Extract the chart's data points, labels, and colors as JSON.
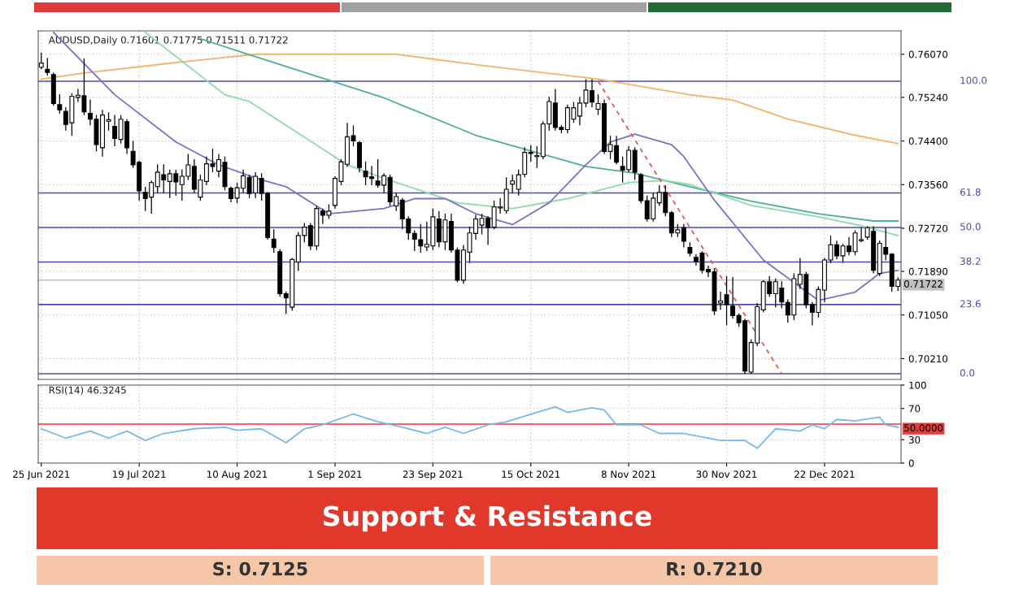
{
  "chart_data": [
    {
      "type": "candlestick",
      "title": "AUDUSD,Daily 0.71601 0.71775 0.71511 0.71722",
      "categories": [
        null,
        null,
        null,
        null,
        null,
        null,
        null,
        null,
        null,
        null,
        null,
        null,
        null,
        null,
        null,
        null,
        null,
        null,
        null,
        null,
        null,
        null,
        null,
        null,
        null,
        null,
        null,
        null,
        null,
        null,
        null,
        null,
        null,
        null,
        null,
        null,
        null,
        null,
        null,
        null,
        null,
        null,
        null,
        null,
        null,
        null,
        null,
        null,
        null,
        null,
        null,
        null,
        null,
        null,
        null,
        null,
        null,
        null,
        null,
        null,
        null,
        null,
        null,
        null,
        null,
        null,
        null,
        null,
        null,
        null,
        null,
        null,
        null,
        null,
        null,
        null,
        null,
        null,
        null,
        null,
        null,
        null,
        null,
        null,
        null,
        null,
        null,
        null,
        null,
        null,
        null,
        null,
        null,
        null,
        null,
        null,
        null,
        null,
        null,
        null,
        null,
        null,
        null,
        null,
        null,
        null,
        null,
        null,
        null,
        null,
        null,
        null,
        null,
        null,
        null,
        null,
        null,
        null,
        null,
        null,
        null,
        null,
        null,
        null,
        null,
        null,
        null,
        null,
        null,
        null,
        null,
        null,
        null,
        null,
        null,
        null,
        null,
        null,
        null,
        null,
        null
      ],
      "ohlc": [
        [
          0.7582,
          0.761,
          0.7578,
          0.759
        ],
        [
          0.7578,
          0.76,
          0.7566,
          0.7572
        ],
        [
          0.7568,
          0.7572,
          0.7508,
          0.7512
        ],
        [
          0.751,
          0.753,
          0.7493,
          0.75
        ],
        [
          0.7497,
          0.7505,
          0.746,
          0.7472
        ],
        [
          0.7475,
          0.7532,
          0.745,
          0.7526
        ],
        [
          0.7524,
          0.754,
          0.7515,
          0.7528
        ],
        [
          0.7527,
          0.7599,
          0.749,
          0.7496
        ],
        [
          0.7493,
          0.752,
          0.747,
          0.7482
        ],
        [
          0.7482,
          0.749,
          0.742,
          0.7433
        ],
        [
          0.7427,
          0.75,
          0.741,
          0.749
        ],
        [
          0.7478,
          0.7495,
          0.746,
          0.7481
        ],
        [
          0.7468,
          0.749,
          0.743,
          0.7445
        ],
        [
          0.7443,
          0.749,
          0.7435,
          0.7482
        ],
        [
          0.7477,
          0.7482,
          0.7415,
          0.7427
        ],
        [
          0.742,
          0.744,
          0.7388,
          0.7394
        ],
        [
          0.7399,
          0.7402,
          0.7325,
          0.7344
        ],
        [
          0.7341,
          0.7352,
          0.7305,
          0.7329
        ],
        [
          0.7332,
          0.7364,
          0.73,
          0.736
        ],
        [
          0.7352,
          0.7395,
          0.734,
          0.738
        ],
        [
          0.7375,
          0.7395,
          0.734,
          0.7365
        ],
        [
          0.7362,
          0.7385,
          0.733,
          0.7377
        ],
        [
          0.7377,
          0.7385,
          0.7335,
          0.7361
        ],
        [
          0.7356,
          0.7385,
          0.7325,
          0.7372
        ],
        [
          0.7372,
          0.7415,
          0.7365,
          0.7394
        ],
        [
          0.7391,
          0.7405,
          0.734,
          0.7347
        ],
        [
          0.7332,
          0.7375,
          0.7325,
          0.7365
        ],
        [
          0.7362,
          0.741,
          0.7355,
          0.7396
        ],
        [
          0.7396,
          0.7425,
          0.738,
          0.7391
        ],
        [
          0.7382,
          0.7415,
          0.737,
          0.7404
        ],
        [
          0.7399,
          0.741,
          0.7345,
          0.7352
        ],
        [
          0.7349,
          0.7352,
          0.7322,
          0.7329
        ],
        [
          0.733,
          0.736,
          0.732,
          0.735
        ],
        [
          0.7349,
          0.7385,
          0.734,
          0.7373
        ],
        [
          0.737,
          0.7375,
          0.733,
          0.7339
        ],
        [
          0.734,
          0.738,
          0.733,
          0.7372
        ],
        [
          0.7368,
          0.7378,
          0.7325,
          0.7339
        ],
        [
          0.7339,
          0.7342,
          0.725,
          0.7254
        ],
        [
          0.7251,
          0.727,
          0.7225,
          0.7235
        ],
        [
          0.7227,
          0.7232,
          0.714,
          0.7146
        ],
        [
          0.7146,
          0.715,
          0.7107,
          0.7138
        ],
        [
          0.712,
          0.7215,
          0.7113,
          0.7212
        ],
        [
          0.7207,
          0.7265,
          0.719,
          0.7258
        ],
        [
          0.7258,
          0.7282,
          0.7245,
          0.7274
        ],
        [
          0.7277,
          0.7282,
          0.723,
          0.7238
        ],
        [
          0.7238,
          0.7315,
          0.723,
          0.731
        ],
        [
          0.7305,
          0.731,
          0.728,
          0.7297
        ],
        [
          0.7297,
          0.7318,
          0.729,
          0.7305
        ],
        [
          0.7316,
          0.7372,
          0.731,
          0.7368
        ],
        [
          0.7362,
          0.7405,
          0.7355,
          0.74
        ],
        [
          0.7395,
          0.7475,
          0.739,
          0.7448
        ],
        [
          0.745,
          0.747,
          0.743,
          0.744
        ],
        [
          0.7437,
          0.744,
          0.738,
          0.7389
        ],
        [
          0.7382,
          0.74,
          0.7355,
          0.7371
        ],
        [
          0.7371,
          0.7392,
          0.7355,
          0.7368
        ],
        [
          0.7363,
          0.7405,
          0.735,
          0.7355
        ],
        [
          0.7355,
          0.7378,
          0.734,
          0.7373
        ],
        [
          0.737,
          0.7375,
          0.7315,
          0.7323
        ],
        [
          0.7315,
          0.734,
          0.7305,
          0.7333
        ],
        [
          0.7326,
          0.733,
          0.727,
          0.729
        ],
        [
          0.729,
          0.7295,
          0.725,
          0.7263
        ],
        [
          0.7262,
          0.7268,
          0.7228,
          0.7251
        ],
        [
          0.725,
          0.728,
          0.7225,
          0.7238
        ],
        [
          0.7236,
          0.7285,
          0.7228,
          0.7241
        ],
        [
          0.7238,
          0.731,
          0.723,
          0.7294
        ],
        [
          0.729,
          0.7305,
          0.7235,
          0.7246
        ],
        [
          0.7246,
          0.73,
          0.723,
          0.7288
        ],
        [
          0.7285,
          0.73,
          0.7225,
          0.723
        ],
        [
          0.723,
          0.7235,
          0.7168,
          0.7172
        ],
        [
          0.7172,
          0.724,
          0.7165,
          0.723
        ],
        [
          0.7226,
          0.7275,
          0.7205,
          0.7263
        ],
        [
          0.7262,
          0.7298,
          0.725,
          0.729
        ],
        [
          0.7278,
          0.73,
          0.726,
          0.7291
        ],
        [
          0.7291,
          0.7295,
          0.724,
          0.7273
        ],
        [
          0.7274,
          0.7325,
          0.727,
          0.7313
        ],
        [
          0.7311,
          0.733,
          0.73,
          0.7313
        ],
        [
          0.7306,
          0.737,
          0.73,
          0.7347
        ],
        [
          0.7357,
          0.7375,
          0.734,
          0.7363
        ],
        [
          0.7347,
          0.7385,
          0.7335,
          0.7375
        ],
        [
          0.7376,
          0.7428,
          0.737,
          0.7418
        ],
        [
          0.7416,
          0.7432,
          0.74,
          0.7418
        ],
        [
          0.741,
          0.743,
          0.7388,
          0.7412
        ],
        [
          0.741,
          0.7478,
          0.7405,
          0.7473
        ],
        [
          0.7473,
          0.7525,
          0.746,
          0.7516
        ],
        [
          0.7513,
          0.754,
          0.746,
          0.7466
        ],
        [
          0.7466,
          0.747,
          0.7455,
          0.7462
        ],
        [
          0.7462,
          0.751,
          0.7455,
          0.7504
        ],
        [
          0.7482,
          0.7515,
          0.7475,
          0.7504
        ],
        [
          0.7488,
          0.7525,
          0.747,
          0.7513
        ],
        [
          0.7513,
          0.7559,
          0.7505,
          0.7538
        ],
        [
          0.7537,
          0.7559,
          0.7505,
          0.7515
        ],
        [
          0.7501,
          0.753,
          0.749,
          0.7512
        ],
        [
          0.7512,
          0.752,
          0.7415,
          0.742
        ],
        [
          0.742,
          0.745,
          0.7405,
          0.7433
        ],
        [
          0.7431,
          0.745,
          0.7395,
          0.7399
        ],
        [
          0.7391,
          0.741,
          0.736,
          0.7384
        ],
        [
          0.7385,
          0.743,
          0.738,
          0.7422
        ],
        [
          0.7422,
          0.7428,
          0.7365,
          0.738
        ],
        [
          0.7375,
          0.7378,
          0.732,
          0.7325
        ],
        [
          0.7325,
          0.7335,
          0.7285,
          0.729
        ],
        [
          0.729,
          0.734,
          0.7285,
          0.733
        ],
        [
          0.7321,
          0.7355,
          0.7315,
          0.7341
        ],
        [
          0.7341,
          0.7355,
          0.7295,
          0.7302
        ],
        [
          0.7302,
          0.7305,
          0.7255,
          0.7263
        ],
        [
          0.7263,
          0.728,
          0.7255,
          0.7269
        ],
        [
          0.7273,
          0.728,
          0.7235,
          0.7247
        ],
        [
          0.7235,
          0.7245,
          0.7218,
          0.7224
        ],
        [
          0.7216,
          0.7222,
          0.72,
          0.7208
        ],
        [
          0.7224,
          0.7228,
          0.7185,
          0.7191
        ],
        [
          0.7193,
          0.72,
          0.7178,
          0.7188
        ],
        [
          0.7188,
          0.7195,
          0.7105,
          0.7113
        ],
        [
          0.7128,
          0.715,
          0.7115,
          0.7132
        ],
        [
          0.7144,
          0.718,
          0.7085,
          0.7125
        ],
        [
          0.7122,
          0.7178,
          0.7098,
          0.7104
        ],
        [
          0.7104,
          0.7108,
          0.7082,
          0.709
        ],
        [
          0.7094,
          0.7098,
          0.6992,
          0.6997
        ],
        [
          0.6995,
          0.7058,
          0.6992,
          0.7052
        ],
        [
          0.7051,
          0.7128,
          0.7045,
          0.7121
        ],
        [
          0.7115,
          0.7172,
          0.711,
          0.7169
        ],
        [
          0.7169,
          0.718,
          0.714,
          0.7146
        ],
        [
          0.7146,
          0.7175,
          0.712,
          0.7169
        ],
        [
          0.7157,
          0.717,
          0.7118,
          0.713
        ],
        [
          0.7129,
          0.7135,
          0.709,
          0.7105
        ],
        [
          0.7105,
          0.7185,
          0.7095,
          0.7175
        ],
        [
          0.7164,
          0.7215,
          0.7155,
          0.7183
        ],
        [
          0.7183,
          0.7188,
          0.7118,
          0.7125
        ],
        [
          0.7125,
          0.713,
          0.7085,
          0.711
        ],
        [
          0.711,
          0.716,
          0.71,
          0.7154
        ],
        [
          0.7153,
          0.7215,
          0.713,
          0.7211
        ],
        [
          0.7211,
          0.7258,
          0.7205,
          0.724
        ],
        [
          0.724,
          0.7248,
          0.7212,
          0.7219
        ],
        [
          0.7219,
          0.7242,
          0.7205,
          0.7238
        ],
        [
          0.7238,
          0.7255,
          0.722,
          0.7227
        ],
        [
          0.7227,
          0.7268,
          0.722,
          0.7263
        ],
        [
          0.7248,
          0.7273,
          0.7245,
          0.725
        ],
        [
          0.7255,
          0.7276,
          0.725,
          0.7273
        ],
        [
          0.7266,
          0.7276,
          0.7185,
          0.7191
        ],
        [
          0.7185,
          0.7248,
          0.718,
          0.7243
        ],
        [
          0.7235,
          0.7273,
          0.721,
          0.7222
        ],
        [
          0.7222,
          0.7224,
          0.715,
          0.716
        ],
        [
          0.71601,
          0.71775,
          0.71511,
          0.71722
        ]
      ],
      "series": [
        {
          "type": "line",
          "color": "#f5b26b",
          "values": [
            0.7559,
            null,
            null,
            null,
            null,
            null,
            null,
            0.7571,
            null,
            null,
            null,
            null,
            null,
            null,
            null,
            null,
            null,
            null,
            null,
            null,
            null,
            null,
            0.7591,
            null,
            null,
            null,
            null,
            null,
            null,
            null,
            null,
            null,
            null,
            null,
            null,
            0.7607,
            null,
            null,
            null,
            null,
            null,
            null,
            null,
            null,
            null,
            null,
            0.7607,
            null,
            null,
            null,
            null,
            null,
            null,
            null,
            null,
            null,
            null,
            null,
            0.7607,
            null,
            null,
            null,
            null,
            null,
            null,
            null,
            null,
            null,
            null,
            null,
            null,
            0.7587,
            null,
            null,
            null,
            null,
            null,
            null,
            null,
            null,
            null,
            null,
            null,
            null,
            null,
            null,
            null,
            null,
            null,
            null,
            null,
            0.7559,
            null,
            null,
            null,
            null,
            null,
            null,
            null,
            null,
            null,
            null,
            null,
            null,
            null,
            null,
            0.7529,
            null,
            null,
            null,
            null,
            null,
            null,
            0.7519,
            null,
            null,
            null,
            null,
            null,
            null,
            null,
            null,
            0.7482,
            null,
            null,
            null,
            null,
            null,
            null,
            null,
            null,
            null,
            null,
            0.7451,
            null,
            null,
            null,
            null,
            null,
            null,
            0.7435
          ]
        },
        {
          "type": "line",
          "color": "#4fae9c",
          "values": [
            null,
            null,
            null,
            null,
            null,
            null,
            null,
            null,
            null,
            null,
            null,
            null,
            null,
            null,
            null,
            null,
            null,
            null,
            null,
            null,
            null,
            null,
            null,
            null,
            null,
            null,
            0.7637,
            null,
            null,
            null,
            null,
            null,
            null,
            null,
            0.7606,
            null,
            null,
            null,
            null,
            null,
            null,
            null,
            null,
            null,
            null,
            null,
            null,
            null,
            null,
            null,
            null,
            null,
            null,
            null,
            null,
            null,
            0.7523,
            null,
            null,
            null,
            null,
            null,
            null,
            null,
            null,
            null,
            null,
            null,
            null,
            null,
            null,
            0.7451,
            null,
            null,
            null,
            null,
            null,
            null,
            null,
            null,
            null,
            null,
            null,
            null,
            null,
            null,
            null,
            null,
            null,
            0.7391,
            null,
            null,
            null,
            null,
            null,
            null,
            null,
            0.7378,
            null,
            null,
            null,
            null,
            null,
            null,
            null,
            null,
            0.7352,
            null,
            null,
            null,
            null,
            null,
            null,
            null,
            null,
            null,
            0.7324,
            null,
            null,
            null,
            null,
            null,
            null,
            null,
            null,
            null,
            null,
            0.73,
            null,
            null,
            null,
            null,
            null,
            null,
            null,
            null,
            0.7286,
            null,
            null,
            null,
            0.7286
          ]
        },
        {
          "type": "line",
          "color": "#8fdaa8",
          "values": [
            null,
            null,
            null,
            null,
            null,
            null,
            null,
            null,
            null,
            null,
            null,
            null,
            null,
            null,
            null,
            null,
            null,
            0.7649,
            null,
            null,
            null,
            null,
            null,
            null,
            null,
            null,
            null,
            null,
            null,
            null,
            0.7529,
            null,
            null,
            null,
            0.7516,
            null,
            null,
            null,
            null,
            null,
            null,
            null,
            null,
            null,
            null,
            null,
            null,
            null,
            null,
            null,
            0.7394,
            null,
            null,
            null,
            null,
            null,
            0.7368,
            null,
            null,
            null,
            null,
            null,
            null,
            null,
            null,
            null,
            null,
            null,
            0.7321,
            null,
            null,
            null,
            null,
            null,
            null,
            null,
            null,
            0.731,
            null,
            null,
            null,
            null,
            null,
            null,
            null,
            null,
            0.7329,
            null,
            null,
            null,
            null,
            null,
            null,
            null,
            null,
            null,
            0.736,
            null,
            null,
            null,
            null,
            null,
            0.7364,
            null,
            null,
            null,
            0.7356,
            null,
            null,
            null,
            null,
            null,
            null,
            null,
            null,
            null,
            0.7316,
            null,
            null,
            null,
            null,
            null,
            null,
            null,
            null,
            null,
            null,
            0.7294,
            null,
            null,
            null,
            null,
            null,
            null,
            0.7277,
            null,
            null,
            null,
            null,
            null,
            0.7258
          ]
        },
        {
          "type": "line",
          "color": "#7b72c8",
          "values": [
            null,
            null,
            0.7649,
            null,
            null,
            null,
            null,
            null,
            null,
            null,
            null,
            null,
            0.7529,
            null,
            null,
            null,
            null,
            null,
            null,
            null,
            null,
            null,
            0.7438,
            null,
            null,
            null,
            null,
            null,
            null,
            0.7394,
            null,
            null,
            null,
            null,
            null,
            null,
            0.7365,
            null,
            null,
            null,
            0.7352,
            null,
            null,
            null,
            null,
            null,
            null,
            0.73,
            null,
            null,
            null,
            null,
            null,
            null,
            null,
            null,
            0.731,
            null,
            null,
            null,
            null,
            0.7329,
            null,
            null,
            null,
            null,
            0.7329,
            null,
            null,
            null,
            null,
            0.73,
            null,
            null,
            null,
            null,
            null,
            0.7279,
            null,
            null,
            null,
            null,
            null,
            0.7321,
            null,
            null,
            null,
            null,
            null,
            0.7394,
            null,
            null,
            null,
            0.7438,
            null,
            null,
            null,
            0.7453,
            null,
            null,
            null,
            null,
            null,
            0.7433,
            null,
            0.741,
            null,
            null,
            null,
            null,
            0.7326,
            null,
            null,
            null,
            null,
            null,
            null,
            null,
            0.7211,
            null,
            null,
            null,
            null,
            null,
            null,
            null,
            null,
            0.7133,
            null,
            null,
            null,
            null,
            null,
            0.7149,
            null,
            null,
            null,
            0.7185,
            null,
            null,
            0.7191
          ]
        },
        {
          "type": "line",
          "color": "#e05a5a",
          "line_style": "dashed",
          "values": [
            null,
            null,
            null,
            null,
            null,
            null,
            null,
            null,
            null,
            null,
            null,
            null,
            null,
            null,
            null,
            null,
            null,
            null,
            null,
            null,
            null,
            null,
            null,
            null,
            null,
            null,
            null,
            null,
            null,
            null,
            null,
            null,
            null,
            null,
            null,
            null,
            null,
            null,
            null,
            null,
            null,
            null,
            null,
            null,
            null,
            null,
            null,
            null,
            null,
            null,
            null,
            null,
            null,
            null,
            null,
            null,
            null,
            null,
            null,
            null,
            null,
            null,
            null,
            null,
            null,
            null,
            null,
            null,
            null,
            null,
            null,
            null,
            null,
            null,
            null,
            null,
            null,
            null,
            null,
            null,
            null,
            null,
            null,
            null,
            null,
            null,
            null,
            null,
            null,
            null,
            null,
            0.7555,
            null,
            null,
            null,
            null,
            null,
            null,
            null,
            null,
            null,
            null,
            null,
            null,
            null,
            null,
            null,
            null,
            null,
            null,
            null,
            null,
            null,
            null,
            null,
            null,
            null,
            null,
            null,
            null,
            null,
            0.6992,
            null,
            null,
            null,
            null,
            null,
            null,
            null,
            null,
            null,
            null,
            null,
            null,
            null,
            null,
            null,
            null,
            null,
            null,
            null
          ]
        }
      ],
      "ylim": [
        0.6981,
        0.7652
      ],
      "yticks": [
        {
          "value": 0.7021,
          "label": "0.70210"
        },
        {
          "value": 0.7105,
          "label": "0.71050"
        },
        {
          "value": 0.7189,
          "label": "0.71890"
        },
        {
          "value": 0.7272,
          "label": "0.72720"
        },
        {
          "value": 0.7356,
          "label": "0.73560"
        },
        {
          "value": 0.744,
          "label": "0.74400"
        },
        {
          "value": 0.7524,
          "label": "0.75240"
        },
        {
          "value": 0.7607,
          "label": "0.76070"
        }
      ],
      "ref_lines": [
        {
          "axis": "y",
          "value": 0.7555,
          "color": "#4b4bb0"
        },
        {
          "axis": "y",
          "value": 0.734,
          "color": "#4b4bb0"
        },
        {
          "axis": "y",
          "value": 0.72735,
          "color": "#4b4bb0"
        },
        {
          "axis": "y",
          "value": 0.7207,
          "color": "#4b4bb0"
        },
        {
          "axis": "y",
          "value": 0.7125,
          "color": "#4b4bb0"
        },
        {
          "axis": "y",
          "value": 0.6992,
          "color": "#4b4bb0"
        },
        {
          "axis": "y",
          "value": 0.71722,
          "label": "0.71722",
          "color": "#c0c0c0"
        }
      ],
      "grid": true,
      "annotations": [
        "Support & Resistance",
        "S: 0.7125",
        "R: 0.7210",
        "100.0",
        "61.8",
        "50.0",
        "38.2",
        "23.6",
        "0.0"
      ]
    },
    {
      "type": "line",
      "title": "RSI(14) 46.3245",
      "categories": [
        "25 Jun 2021",
        null,
        null,
        null,
        null,
        null,
        null,
        null,
        null,
        null,
        null,
        null,
        null,
        null,
        null,
        null,
        "19 Jul 2021",
        null,
        null,
        null,
        null,
        null,
        null,
        null,
        null,
        null,
        null,
        null,
        null,
        null,
        null,
        null,
        "10 Aug 2021",
        null,
        null,
        null,
        null,
        null,
        null,
        null,
        null,
        null,
        null,
        null,
        null,
        null,
        null,
        null,
        "1 Sep 2021",
        null,
        null,
        null,
        null,
        null,
        null,
        null,
        null,
        null,
        null,
        null,
        null,
        null,
        null,
        null,
        "23 Sep 2021",
        null,
        null,
        null,
        null,
        null,
        null,
        null,
        null,
        null,
        null,
        null,
        null,
        null,
        null,
        null,
        "15 Oct 2021",
        null,
        null,
        null,
        null,
        null,
        null,
        null,
        null,
        null,
        null,
        null,
        null,
        null,
        null,
        null,
        "8 Nov 2021",
        null,
        null,
        null,
        null,
        null,
        null,
        null,
        null,
        null,
        null,
        null,
        null,
        null,
        null,
        null,
        "30 Nov 2021",
        null,
        null,
        null,
        null,
        null,
        null,
        null,
        null,
        null,
        null,
        null,
        null,
        null,
        null,
        null,
        "22 Dec 2021",
        null,
        null,
        null,
        null,
        null,
        null,
        null,
        null,
        null,
        null,
        null,
        null
      ],
      "series": [
        {
          "color": "#7ab8ea",
          "values": [
            44,
            null,
            null,
            null,
            32,
            null,
            null,
            null,
            41,
            null,
            null,
            32,
            null,
            null,
            41,
            null,
            null,
            29,
            null,
            null,
            38,
            null,
            null,
            null,
            null,
            44,
            null,
            null,
            null,
            null,
            46,
            null,
            42,
            null,
            null,
            null,
            44,
            null,
            null,
            null,
            26,
            null,
            null,
            44,
            null,
            null,
            49,
            null,
            null,
            null,
            null,
            63,
            null,
            null,
            null,
            53,
            null,
            null,
            null,
            46,
            null,
            null,
            null,
            38,
            null,
            null,
            46,
            null,
            null,
            38,
            null,
            null,
            null,
            49,
            null,
            null,
            53,
            null,
            null,
            null,
            null,
            65,
            null,
            null,
            72,
            null,
            65,
            null,
            null,
            null,
            71,
            null,
            68,
            null,
            49,
            null,
            null,
            null,
            49,
            null,
            null,
            38,
            null,
            null,
            null,
            38,
            null,
            null,
            null,
            null,
            null,
            29,
            null,
            null,
            null,
            29,
            null,
            19,
            null,
            null,
            44,
            null,
            null,
            null,
            41,
            null,
            49,
            null,
            44,
            null,
            56,
            null,
            null,
            54,
            null,
            null,
            null,
            59,
            49,
            null,
            46
          ]
        }
      ],
      "ylim": [
        0,
        100
      ],
      "yticks": [
        0,
        30,
        70,
        100
      ],
      "ref_lines": [
        {
          "axis": "y",
          "value": 50,
          "label": "50.0000",
          "color": "#e83a3a"
        }
      ],
      "grid": true
    }
  ]
}
